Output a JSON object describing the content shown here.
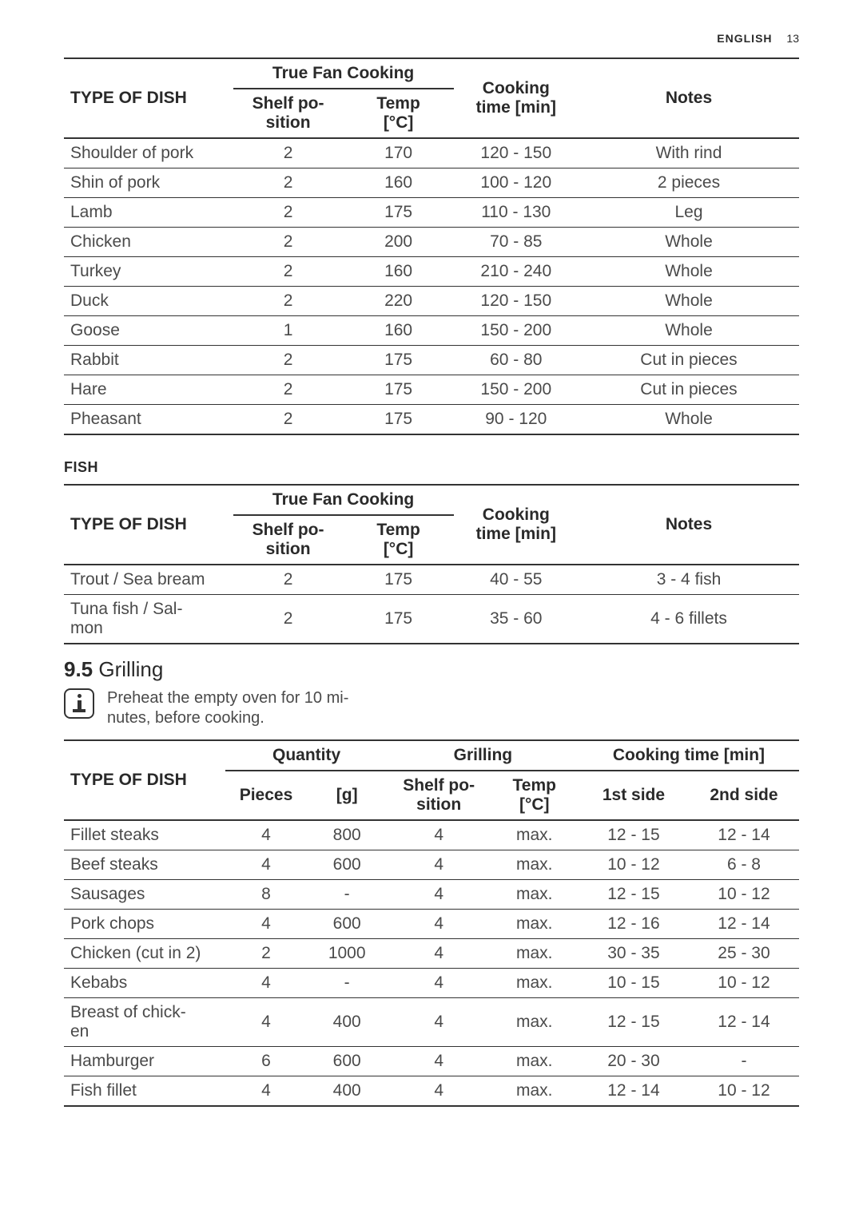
{
  "header": {
    "language": "ENGLISH",
    "pageNumber": "13"
  },
  "table1": {
    "columns": {
      "typeOfDish": "TYPE OF DISH",
      "trueFanCooking": "True Fan Cooking",
      "shelfPosition": "Shelf po-\nsition",
      "temp": "Temp\n[°C]",
      "cookingTime": "Cooking\ntime [min]",
      "notes": "Notes"
    },
    "rows": [
      {
        "dish": "Shoulder of pork",
        "shelf": "2",
        "temp": "170",
        "time": "120 - 150",
        "notes": "With rind"
      },
      {
        "dish": "Shin of pork",
        "shelf": "2",
        "temp": "160",
        "time": "100 - 120",
        "notes": "2 pieces"
      },
      {
        "dish": "Lamb",
        "shelf": "2",
        "temp": "175",
        "time": "110 - 130",
        "notes": "Leg"
      },
      {
        "dish": "Chicken",
        "shelf": "2",
        "temp": "200",
        "time": "70 - 85",
        "notes": "Whole"
      },
      {
        "dish": "Turkey",
        "shelf": "2",
        "temp": "160",
        "time": "210 - 240",
        "notes": "Whole"
      },
      {
        "dish": "Duck",
        "shelf": "2",
        "temp": "220",
        "time": "120 - 150",
        "notes": "Whole"
      },
      {
        "dish": "Goose",
        "shelf": "1",
        "temp": "160",
        "time": "150 - 200",
        "notes": "Whole"
      },
      {
        "dish": "Rabbit",
        "shelf": "2",
        "temp": "175",
        "time": "60 - 80",
        "notes": "Cut in pieces"
      },
      {
        "dish": "Hare",
        "shelf": "2",
        "temp": "175",
        "time": "150 - 200",
        "notes": "Cut in pieces"
      },
      {
        "dish": "Pheasant",
        "shelf": "2",
        "temp": "175",
        "time": "90 - 120",
        "notes": "Whole"
      }
    ]
  },
  "fishSection": {
    "title": "FISH"
  },
  "table2": {
    "columns": {
      "typeOfDish": "TYPE OF DISH",
      "trueFanCooking": "True Fan Cooking",
      "shelfPosition": "Shelf po-\nsition",
      "temp": "Temp\n[°C]",
      "cookingTime": "Cooking\ntime [min]",
      "notes": "Notes"
    },
    "rows": [
      {
        "dish": "Trout / Sea bream",
        "shelf": "2",
        "temp": "175",
        "time": "40 - 55",
        "notes": "3 - 4 fish"
      },
      {
        "dish": "Tuna fish / Sal-\nmon",
        "shelf": "2",
        "temp": "175",
        "time": "35 - 60",
        "notes": "4 - 6 fillets"
      }
    ]
  },
  "grillSection": {
    "number": "9.5",
    "title": "Grilling",
    "infoText": "Preheat the empty oven for 10 mi-\nnutes, before cooking."
  },
  "table3": {
    "columns": {
      "typeOfDish": "TYPE OF DISH",
      "quantity": "Quantity",
      "pieces": "Pieces",
      "grams": "[g]",
      "grilling": "Grilling",
      "shelfPosition": "Shelf po-\nsition",
      "temp": "Temp\n[°C]",
      "cookingTime": "Cooking time [min]",
      "side1": "1st side",
      "side2": "2nd side"
    },
    "rows": [
      {
        "dish": "Fillet steaks",
        "pieces": "4",
        "g": "800",
        "shelf": "4",
        "temp": "max.",
        "s1": "12 - 15",
        "s2": "12 - 14"
      },
      {
        "dish": "Beef steaks",
        "pieces": "4",
        "g": "600",
        "shelf": "4",
        "temp": "max.",
        "s1": "10 - 12",
        "s2": "6 - 8"
      },
      {
        "dish": "Sausages",
        "pieces": "8",
        "g": "-",
        "shelf": "4",
        "temp": "max.",
        "s1": "12 - 15",
        "s2": "10 - 12"
      },
      {
        "dish": "Pork chops",
        "pieces": "4",
        "g": "600",
        "shelf": "4",
        "temp": "max.",
        "s1": "12 - 16",
        "s2": "12 - 14"
      },
      {
        "dish": "Chicken (cut in 2)",
        "pieces": "2",
        "g": "1000",
        "shelf": "4",
        "temp": "max.",
        "s1": "30 - 35",
        "s2": "25 - 30"
      },
      {
        "dish": "Kebabs",
        "pieces": "4",
        "g": "-",
        "shelf": "4",
        "temp": "max.",
        "s1": "10 - 15",
        "s2": "10 - 12"
      },
      {
        "dish": "Breast of chick-\nen",
        "pieces": "4",
        "g": "400",
        "shelf": "4",
        "temp": "max.",
        "s1": "12 - 15",
        "s2": "12 - 14"
      },
      {
        "dish": "Hamburger",
        "pieces": "6",
        "g": "600",
        "shelf": "4",
        "temp": "max.",
        "s1": "20 - 30",
        "s2": "-"
      },
      {
        "dish": "Fish fillet",
        "pieces": "4",
        "g": "400",
        "shelf": "4",
        "temp": "max.",
        "s1": "12 - 14",
        "s2": "10 - 12"
      }
    ]
  }
}
